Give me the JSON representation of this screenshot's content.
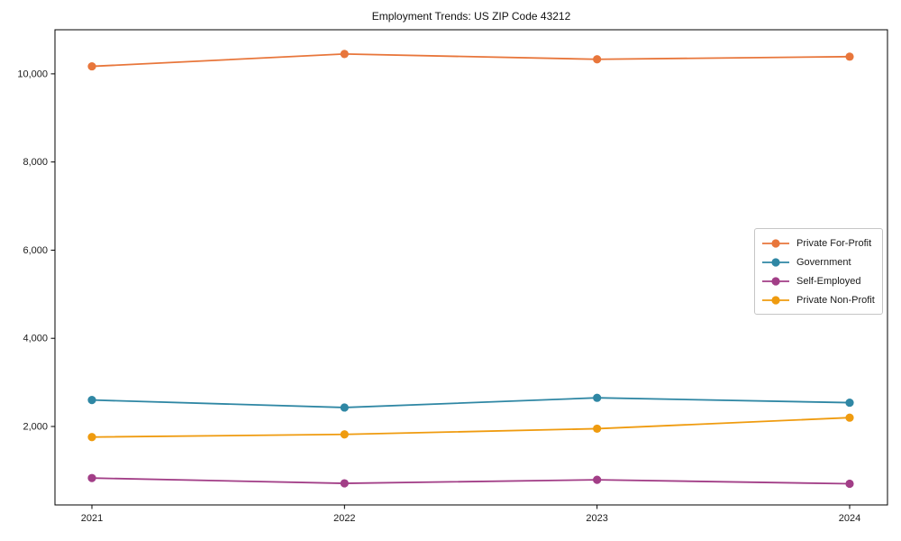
{
  "figure": {
    "title": "Employment Trends: US ZIP Code 43212"
  },
  "chart_data": {
    "type": "line",
    "title": "Employment Trends: US ZIP Code 43212",
    "categories": [
      "2021",
      "2022",
      "2023",
      "2024"
    ],
    "series": [
      {
        "name": "Private For-Profit",
        "color": "#E8763B",
        "values": [
          10170,
          10450,
          10330,
          10390
        ]
      },
      {
        "name": "Government",
        "color": "#2F87A4",
        "values": [
          2600,
          2430,
          2650,
          2540
        ]
      },
      {
        "name": "Self-Employed",
        "color": "#A23E87",
        "values": [
          830,
          710,
          790,
          700
        ]
      },
      {
        "name": "Private Non-Profit",
        "color": "#EF9B0F",
        "values": [
          1760,
          1820,
          1950,
          2200
        ]
      }
    ],
    "xlabel": "",
    "ylabel": "",
    "ylim": [
      220,
      11000
    ],
    "yticks": [
      2000,
      4000,
      6000,
      8000,
      10000
    ],
    "grid": false,
    "legend_position": "center-right",
    "marker": "circle",
    "line_width": 1.8,
    "marker_radius": 4.6
  }
}
